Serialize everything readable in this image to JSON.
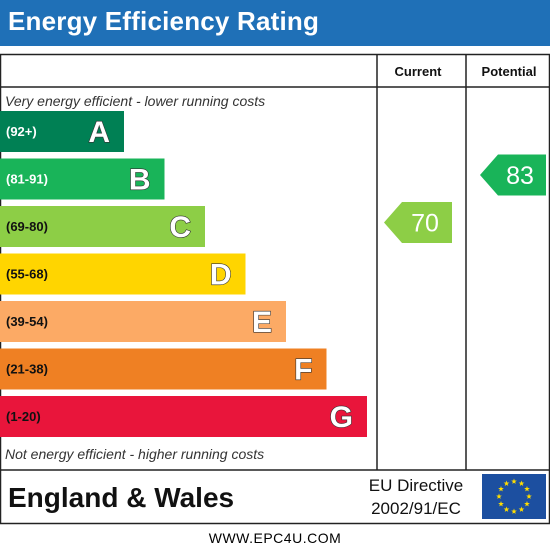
{
  "title": "Energy Efficiency Rating",
  "columns": {
    "current": "Current",
    "potential": "Potential"
  },
  "top_note": "Very energy efficient - lower running costs",
  "bottom_note": "Not energy efficient - higher running costs",
  "region": "England & Wales",
  "directive": {
    "line1": "EU Directive",
    "line2": "2002/91/EC"
  },
  "website": "WWW.EPC4U.COM",
  "flag_icon": "eu-flag-icon",
  "chart_data": {
    "type": "bar",
    "title": "Energy Efficiency Rating",
    "bands": [
      {
        "range": "(92+)",
        "letter": "A",
        "min": 92,
        "max": 100,
        "color": "#008054",
        "range_color": "#ffffff"
      },
      {
        "range": "(81-91)",
        "letter": "B",
        "min": 81,
        "max": 91,
        "color": "#19b459",
        "range_color": "#ffffff"
      },
      {
        "range": "(69-80)",
        "letter": "C",
        "min": 69,
        "max": 80,
        "color": "#8dce46",
        "range_color": "#111111"
      },
      {
        "range": "(55-68)",
        "letter": "D",
        "min": 55,
        "max": 68,
        "color": "#ffd500",
        "range_color": "#111111"
      },
      {
        "range": "(39-54)",
        "letter": "E",
        "min": 39,
        "max": 54,
        "color": "#fcaa65",
        "range_color": "#111111"
      },
      {
        "range": "(21-38)",
        "letter": "F",
        "min": 21,
        "max": 38,
        "color": "#ef8023",
        "range_color": "#111111"
      },
      {
        "range": "(1-20)",
        "letter": "G",
        "min": 1,
        "max": 20,
        "color": "#e9153b",
        "range_color": "#111111"
      }
    ],
    "series": [
      {
        "name": "Current",
        "value": 70,
        "band": "C"
      },
      {
        "name": "Potential",
        "value": 83,
        "band": "B"
      }
    ]
  }
}
